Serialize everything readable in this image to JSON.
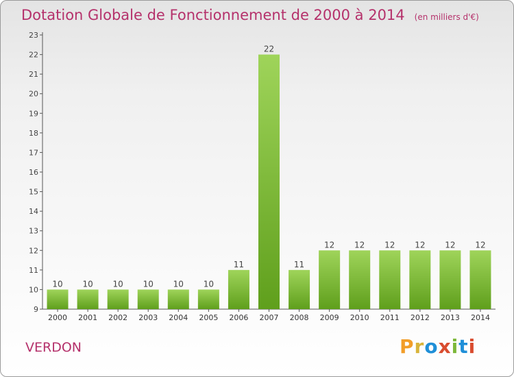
{
  "header": {
    "title": "Dotation Globale de Fonctionnement de 2000 à 2014",
    "unit": "(en milliers d'€)"
  },
  "commune": "VERDON",
  "logo": {
    "letters": [
      "P",
      "r",
      "o",
      "x",
      "i",
      "t",
      "i"
    ],
    "colors": [
      "#f29e2a",
      "#d8b43a",
      "#1f8fd8",
      "#d94c2f",
      "#7db83a",
      "#1f8fd8",
      "#d94c2f"
    ]
  },
  "colors": {
    "accent": "#b5316b",
    "bar_light": "#9fd45a",
    "bar_dark": "#5f9f1c"
  },
  "chart_data": {
    "type": "bar",
    "categories": [
      "2000",
      "2001",
      "2002",
      "2003",
      "2004",
      "2005",
      "2006",
      "2007",
      "2008",
      "2009",
      "2010",
      "2011",
      "2012",
      "2013",
      "2014"
    ],
    "values": [
      10,
      10,
      10,
      10,
      10,
      10,
      11,
      22,
      11,
      12,
      12,
      12,
      12,
      12,
      12
    ],
    "title": "Dotation Globale de Fonctionnement de 2000 à 2014",
    "xlabel": "",
    "ylabel": "",
    "ylim": [
      9,
      23
    ],
    "yticks": [
      9,
      10,
      11,
      12,
      13,
      14,
      15,
      16,
      17,
      18,
      19,
      20,
      21,
      22,
      23
    ],
    "grid": false,
    "data_labels": true
  }
}
